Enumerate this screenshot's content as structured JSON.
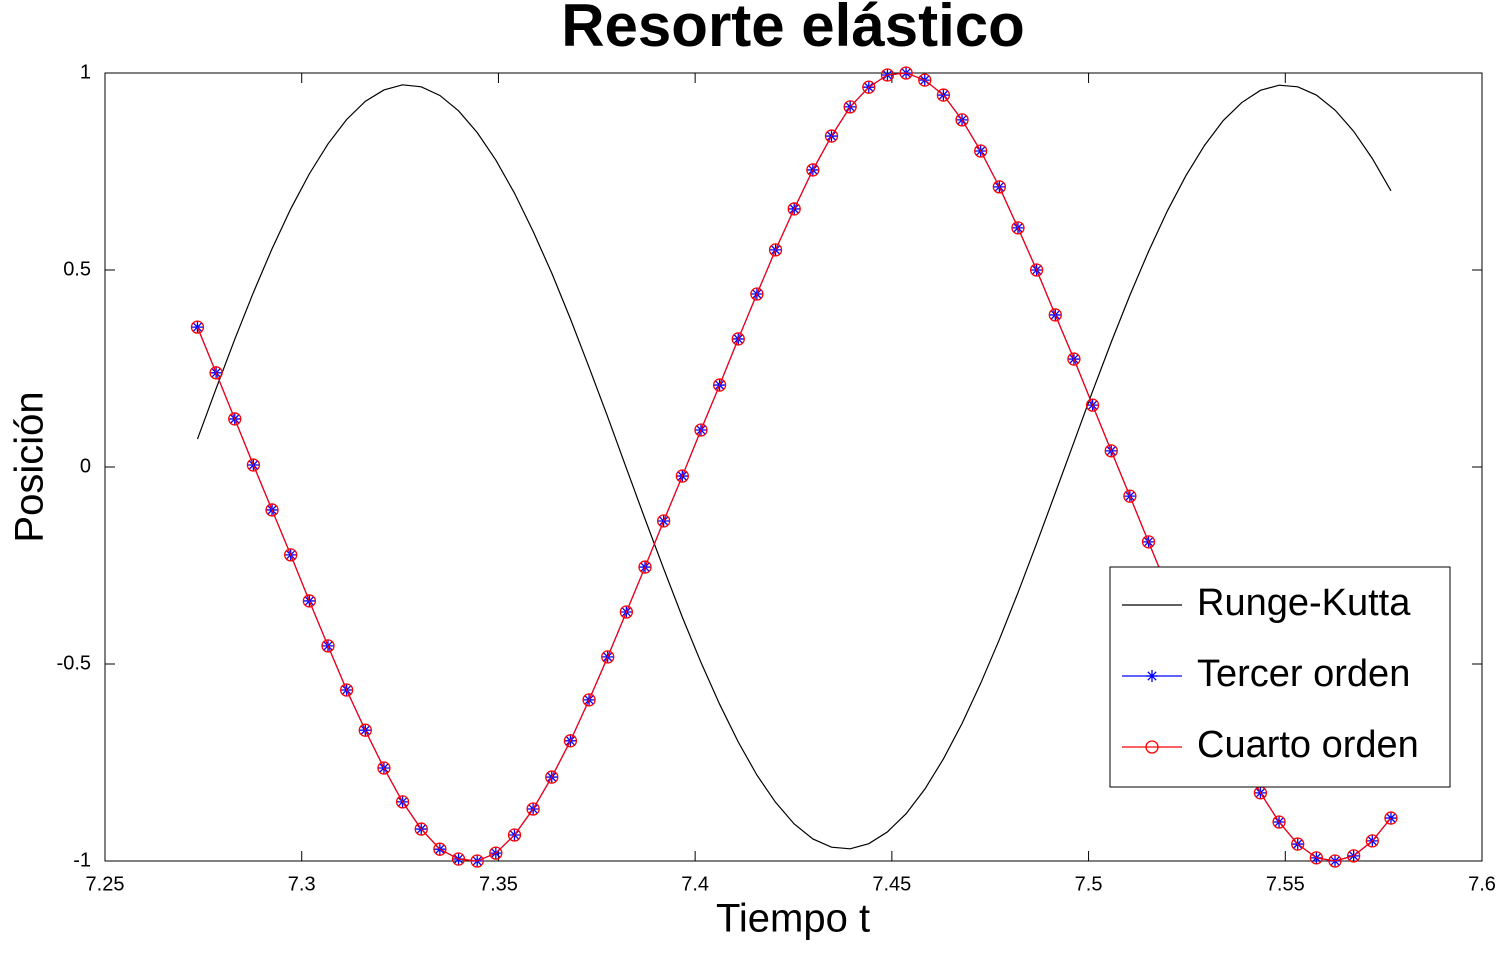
{
  "chart_data": {
    "type": "line",
    "title": "Resorte elástico",
    "x_label": "Tiempo t",
    "y_label": "Posición",
    "x": [
      7.2735,
      7.27824,
      7.28298,
      7.28772,
      7.29246,
      7.2972,
      7.30194,
      7.30668,
      7.31142,
      7.31616,
      7.3209,
      7.32564,
      7.33038,
      7.33512,
      7.33986,
      7.3446,
      7.34934,
      7.35408,
      7.35882,
      7.36356,
      7.3683,
      7.37304,
      7.37778,
      7.38252,
      7.38726,
      7.392,
      7.39674,
      7.40148,
      7.40622,
      7.41096,
      7.4157,
      7.42044,
      7.42518,
      7.42992,
      7.43466,
      7.4394,
      7.44414,
      7.44888,
      7.45362,
      7.45836,
      7.4631,
      7.46784,
      7.47258,
      7.47732,
      7.48206,
      7.4868,
      7.49154,
      7.49628,
      7.50102,
      7.50576,
      7.5105,
      7.51524,
      7.51998,
      7.52472,
      7.52946,
      7.5342,
      7.53894,
      7.54368,
      7.54842,
      7.55316,
      7.5579,
      7.56264,
      7.56738,
      7.57212,
      7.57686
    ],
    "series": [
      {
        "name": "Runge-Kutta",
        "color": "#000000",
        "marker": "none",
        "values": [
          0.071,
          0.199,
          0.324,
          0.443,
          0.554,
          0.655,
          0.744,
          0.82,
          0.882,
          0.928,
          0.957,
          0.97,
          0.965,
          0.943,
          0.904,
          0.849,
          0.779,
          0.695,
          0.598,
          0.492,
          0.376,
          0.253,
          0.127,
          -0.003,
          -0.132,
          -0.258,
          -0.381,
          -0.496,
          -0.602,
          -0.698,
          -0.782,
          -0.851,
          -0.906,
          -0.944,
          -0.965,
          -0.969,
          -0.956,
          -0.926,
          -0.88,
          -0.818,
          -0.741,
          -0.651,
          -0.549,
          -0.438,
          -0.319,
          -0.194,
          -0.066,
          0.063,
          0.192,
          0.317,
          0.436,
          0.547,
          0.649,
          0.739,
          0.816,
          0.879,
          0.925,
          0.956,
          0.969,
          0.965,
          0.944,
          0.906,
          0.852,
          0.783,
          0.701
        ]
      },
      {
        "name": "Tercer orden",
        "color": "#0000ff",
        "marker": "asterisk",
        "values": [
          0.355,
          0.239,
          0.122,
          0.005,
          -0.109,
          -0.223,
          -0.34,
          -0.454,
          -0.566,
          -0.668,
          -0.764,
          -0.85,
          -0.919,
          -0.97,
          -0.995,
          -1.0,
          -0.98,
          -0.934,
          -0.868,
          -0.787,
          -0.695,
          -0.591,
          -0.482,
          -0.368,
          -0.254,
          -0.137,
          -0.023,
          0.094,
          0.208,
          0.325,
          0.439,
          0.551,
          0.655,
          0.754,
          0.84,
          0.914,
          0.964,
          0.995,
          1.0,
          0.982,
          0.944,
          0.881,
          0.802,
          0.711,
          0.607,
          0.5,
          0.386,
          0.274,
          0.157,
          0.041,
          -0.074,
          -0.19,
          -0.305,
          -0.418,
          -0.529,
          -0.634,
          -0.735,
          -0.827,
          -0.901,
          -0.957,
          -0.992,
          -1.0,
          -0.987,
          -0.949,
          -0.891
        ]
      },
      {
        "name": "Cuarto orden",
        "color": "#ff0000",
        "marker": "circle",
        "values": [
          0.355,
          0.239,
          0.122,
          0.005,
          -0.109,
          -0.223,
          -0.34,
          -0.454,
          -0.566,
          -0.668,
          -0.764,
          -0.85,
          -0.919,
          -0.97,
          -0.995,
          -1.0,
          -0.98,
          -0.934,
          -0.868,
          -0.787,
          -0.695,
          -0.591,
          -0.482,
          -0.368,
          -0.254,
          -0.137,
          -0.023,
          0.094,
          0.208,
          0.325,
          0.439,
          0.551,
          0.655,
          0.754,
          0.84,
          0.914,
          0.964,
          0.995,
          1.0,
          0.982,
          0.944,
          0.881,
          0.802,
          0.711,
          0.607,
          0.5,
          0.386,
          0.274,
          0.157,
          0.041,
          -0.074,
          -0.19,
          -0.305,
          -0.418,
          -0.529,
          -0.634,
          -0.735,
          -0.827,
          -0.901,
          -0.957,
          -0.992,
          -1.0,
          -0.987,
          -0.949,
          -0.891
        ]
      }
    ],
    "xlim": [
      7.25,
      7.6
    ],
    "xticks": [
      7.25,
      7.3,
      7.35,
      7.4,
      7.45,
      7.5,
      7.55,
      7.6
    ],
    "ylim": [
      -1,
      1
    ],
    "yticks": [
      -1,
      -0.5,
      0,
      0.5,
      1
    ],
    "grid": false,
    "legend": "lower right"
  }
}
